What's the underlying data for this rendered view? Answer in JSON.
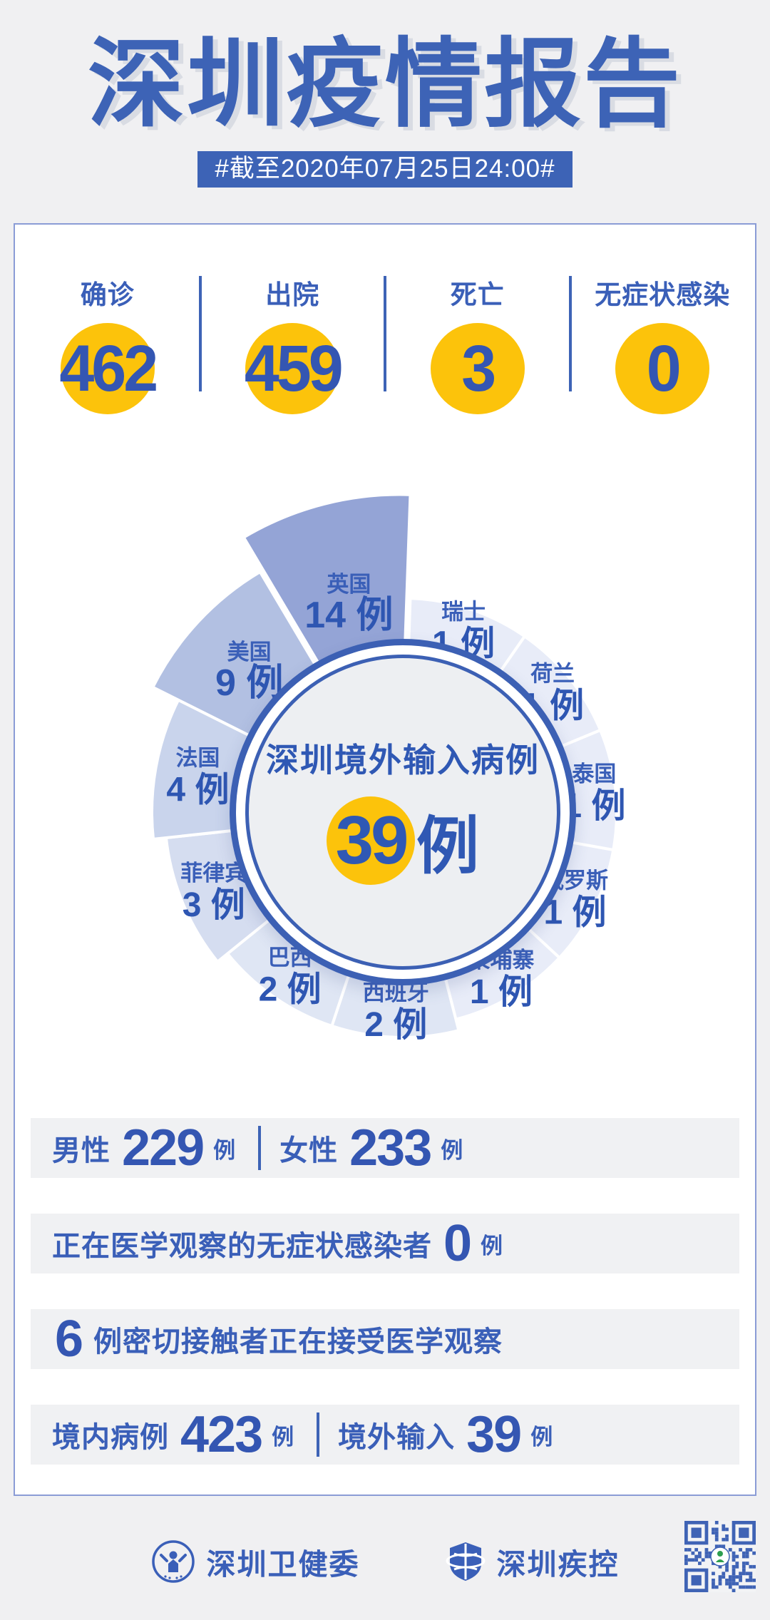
{
  "header": {
    "title": "深圳疫情报告",
    "subtitle": "#截至2020年07月25日24:00#"
  },
  "summary": {
    "items": [
      {
        "label": "确诊",
        "value": "462"
      },
      {
        "label": "出院",
        "value": "459"
      },
      {
        "label": "死亡",
        "value": "3"
      },
      {
        "label": "无症状感染",
        "value": "0"
      }
    ]
  },
  "chart_data": {
    "type": "pie",
    "variant": "nightingale-rose",
    "center_title": "深圳境外输入病例",
    "center_value": "39",
    "center_unit": "例",
    "total": 39,
    "unit": "例",
    "legend_position": "none",
    "order": "clockwise-from-top",
    "series": [
      {
        "name": "深圳境外输入病例",
        "data": [
          {
            "label": "瑞士",
            "value": 1
          },
          {
            "label": "荷兰",
            "value": 1
          },
          {
            "label": "泰国",
            "value": 1
          },
          {
            "label": "俄罗斯",
            "value": 1
          },
          {
            "label": "柬埔寨",
            "value": 1
          },
          {
            "label": "西班牙",
            "value": 2
          },
          {
            "label": "巴西",
            "value": 2
          },
          {
            "label": "菲律宾",
            "value": 3
          },
          {
            "label": "法国",
            "value": 4
          },
          {
            "label": "美国",
            "value": 9
          },
          {
            "label": "英国",
            "value": 14
          }
        ]
      }
    ]
  },
  "detail_rows": [
    {
      "segments": [
        {
          "text": "男性",
          "kind": "label"
        },
        {
          "text": "229",
          "kind": "num"
        },
        {
          "text": "例",
          "kind": "unit"
        },
        {
          "kind": "sep"
        },
        {
          "text": "女性",
          "kind": "label"
        },
        {
          "text": "233",
          "kind": "num"
        },
        {
          "text": "例",
          "kind": "unit"
        }
      ]
    },
    {
      "segments": [
        {
          "text": "正在医学观察的无症状感染者",
          "kind": "label"
        },
        {
          "text": "0",
          "kind": "num"
        },
        {
          "text": "例",
          "kind": "unit"
        }
      ]
    },
    {
      "segments": [
        {
          "text": "6",
          "kind": "num-first"
        },
        {
          "text": "例密切接触者正在接受医学观察",
          "kind": "label"
        }
      ]
    },
    {
      "segments": [
        {
          "text": "境内病例",
          "kind": "label"
        },
        {
          "text": "423",
          "kind": "num"
        },
        {
          "text": "例",
          "kind": "unit"
        },
        {
          "kind": "sep"
        },
        {
          "text": "境外输入",
          "kind": "label"
        },
        {
          "text": "39",
          "kind": "num"
        },
        {
          "text": "例",
          "kind": "unit"
        }
      ]
    }
  ],
  "footer": {
    "org1_label": "深圳卫健委",
    "org1_icon": "person-badge-icon",
    "org2_label": "深圳疾控",
    "org2_icon": "globe-shield-icon",
    "qr_icon": "qr-code"
  },
  "colors": {
    "primary_blue": "#3d63b6",
    "number_blue": "#3456b2",
    "accent_yellow": "#fcc30b",
    "page_background": "#f0f0f2",
    "card_background": "#ffffff",
    "card_border": "#8b9cd6",
    "row_background": "#f0f1f3",
    "medallion_fill": "#edeff2",
    "slice_color_by_value": {
      "1": "#e8ecf8",
      "2": "#dfe6f4",
      "3": "#d5ddf0",
      "4": "#c9d4ec",
      "9": "#b2c0e2",
      "14": "#94a4d6"
    }
  }
}
